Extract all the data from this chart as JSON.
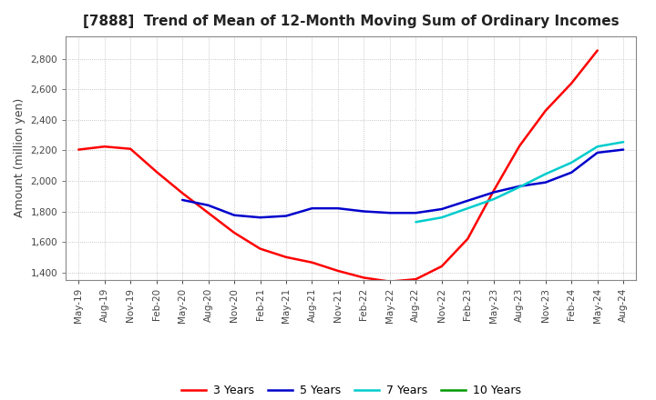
{
  "title": "[7888]  Trend of Mean of 12-Month Moving Sum of Ordinary Incomes",
  "ylabel": "Amount (million yen)",
  "ylim": [
    1350,
    2950
  ],
  "yticks": [
    1400,
    1600,
    1800,
    2000,
    2200,
    2400,
    2600,
    2800
  ],
  "x_labels": [
    "May-19",
    "Aug-19",
    "Nov-19",
    "Feb-20",
    "May-20",
    "Aug-20",
    "Nov-20",
    "Feb-21",
    "May-21",
    "Aug-21",
    "Nov-21",
    "Feb-22",
    "May-22",
    "Aug-22",
    "Nov-22",
    "Feb-23",
    "May-23",
    "Aug-23",
    "Nov-23",
    "Feb-24",
    "May-24",
    "Aug-24"
  ],
  "series_3y": [
    2205,
    2225,
    2210,
    2060,
    1920,
    1790,
    1660,
    1555,
    1500,
    1465,
    1410,
    1365,
    1340,
    1355,
    1440,
    1620,
    1935,
    2230,
    2460,
    2640,
    2855,
    null
  ],
  "series_5y": [
    null,
    null,
    null,
    null,
    1875,
    1840,
    1775,
    1760,
    1770,
    1820,
    1820,
    1800,
    1790,
    1790,
    1815,
    1870,
    1925,
    1965,
    1990,
    2055,
    2185,
    2205
  ],
  "series_7y": [
    null,
    null,
    null,
    null,
    null,
    null,
    null,
    null,
    null,
    null,
    null,
    null,
    null,
    1730,
    1760,
    1820,
    1880,
    1960,
    2045,
    2120,
    2225,
    2255
  ],
  "series_10y": [
    null,
    null,
    null,
    null,
    null,
    null,
    null,
    null,
    null,
    null,
    null,
    null,
    null,
    null,
    null,
    null,
    null,
    null,
    null,
    null,
    null,
    null
  ],
  "color_3y": "#FF0000",
  "color_5y": "#0000CC",
  "color_7y": "#00CCCC",
  "color_10y": "#009900",
  "legend_labels": [
    "3 Years",
    "5 Years",
    "7 Years",
    "10 Years"
  ],
  "bg_color": "#FFFFFF",
  "grid_color": "#999999",
  "title_fontsize": 11,
  "label_fontsize": 9,
  "tick_fontsize": 7.5
}
